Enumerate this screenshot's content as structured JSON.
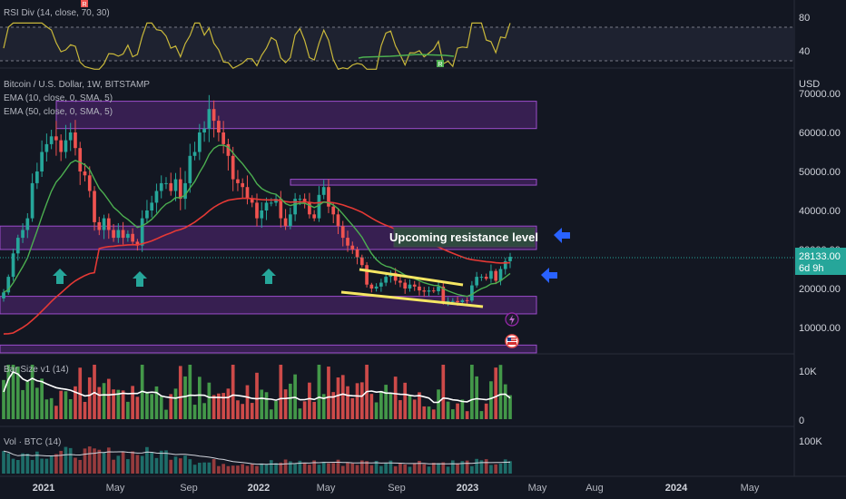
{
  "chart": {
    "rsi_label": "RSI Div (14, close, 70, 30)",
    "main_title": "Bitcoin / U.S. Dollar, 1W, BITSTAMP",
    "ema10_label": "EMA (10, close, 0, SMA, 5)",
    "ema50_label": "EMA (50, close, 0, SMA, 5)",
    "barsize_label": "Bar Size v1 (14)",
    "vol_label": "Vol · BTC (14)",
    "currency": "USD",
    "price_badge": "28133.00",
    "countdown": "6d 9h",
    "rsi_badge_top": "R",
    "rsi_badge_bottom": "R",
    "annotation": "Upcoming resistance level"
  },
  "colors": {
    "background": "#131722",
    "up": "#26a69a",
    "down": "#ef5350",
    "ema10": "#4caf50",
    "ema50": "#e53935",
    "zone": "#7b2fa8",
    "rsi_line": "#c9b83a",
    "trendline": "#f5e663",
    "arrow_green": "#26a69a",
    "arrow_blue": "#2962ff",
    "price_badge": "#26a69a"
  },
  "chart_data": {
    "type": "candlestick",
    "price_axis": {
      "ticks": [
        "70000.00",
        "60000.00",
        "50000.00",
        "40000.00",
        "30000.00",
        "20000.00",
        "10000.00"
      ],
      "tick_values": [
        70000,
        60000,
        50000,
        40000,
        30000,
        20000,
        10000
      ],
      "range": [
        3000,
        70000
      ]
    },
    "x_axis": {
      "ticks": [
        "2021",
        "May",
        "Sep",
        "2022",
        "May",
        "Sep",
        "2023",
        "May",
        "Aug",
        "2024",
        "May"
      ],
      "bold": [
        true,
        false,
        false,
        true,
        false,
        false,
        true,
        false,
        false,
        true,
        false
      ]
    },
    "rsi_axis": {
      "ticks": [
        "80",
        "40"
      ]
    },
    "barsize_axis": {
      "ticks": [
        "10K",
        "0"
      ]
    },
    "vol_axis": {
      "ticks": [
        "100K"
      ]
    },
    "resistance_zones": [
      {
        "low": 61000,
        "high": 68000
      },
      {
        "low": 46500,
        "high": 48000
      },
      {
        "low": 30000,
        "high": 36000
      },
      {
        "low": 13500,
        "high": 18000
      },
      {
        "low": 3500,
        "high": 5500
      }
    ],
    "close_series": [
      19000,
      23000,
      29000,
      33000,
      35000,
      38000,
      47000,
      50000,
      55000,
      57000,
      59000,
      58000,
      55000,
      58000,
      60000,
      56000,
      50000,
      49000,
      45000,
      37000,
      35000,
      38000,
      35000,
      33000,
      35000,
      33000,
      34000,
      32000,
      31000,
      38000,
      40000,
      42000,
      45000,
      47000,
      47000,
      45000,
      48000,
      43000,
      47000,
      54000,
      55000,
      60000,
      61000,
      66000,
      63000,
      60000,
      57000,
      54000,
      48000,
      47000,
      46000,
      43000,
      42000,
      38000,
      40000,
      42000,
      42000,
      43000,
      38000,
      36000,
      39000,
      43000,
      43000,
      42000,
      39000,
      38000,
      44000,
      46000,
      41000,
      39000,
      36000,
      33000,
      31000,
      30000,
      28000,
      26000,
      21000,
      20000,
      20500,
      21500,
      23000,
      24000,
      22000,
      21500,
      20000,
      21000,
      20500,
      19500,
      19200,
      19500,
      19300,
      20500,
      16500,
      16800,
      16800,
      16500,
      17000,
      16900,
      20800,
      23000,
      23000,
      22500,
      24500,
      22000,
      25000,
      27000,
      28133
    ],
    "ema10": null,
    "ema50": null,
    "annotations": [
      {
        "text": "Upcoming resistance level"
      }
    ]
  }
}
